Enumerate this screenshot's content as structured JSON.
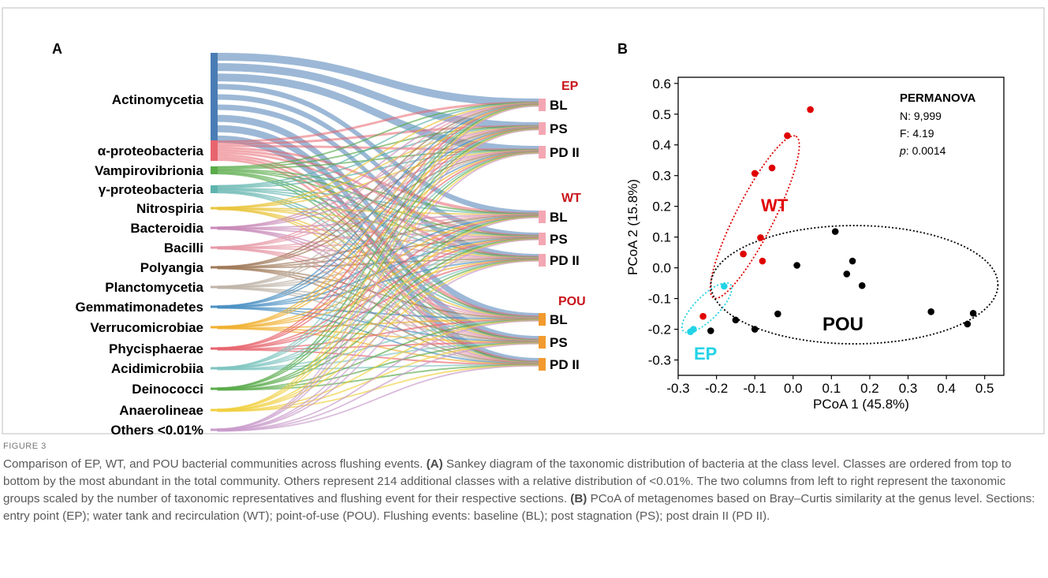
{
  "panels": {
    "a": "A",
    "b": "B"
  },
  "sankey": {
    "type": "sankey",
    "source_classes": [
      "Actinomycetia",
      "α-proteobacteria",
      "Vampirovibrionia",
      "γ-proteobacteria",
      "Nitrospiria",
      "Bacteroidia",
      "Bacilli",
      "Polyangia",
      "Planctomycetia",
      "Gemmatimonadetes",
      "Verrucomicrobiae",
      "Phycisphaerae",
      "Acidimicrobiia",
      "Deinococci",
      "Anaerolineae",
      "Others <0.01%"
    ],
    "source_colors": [
      "#4a7db5",
      "#e8646e",
      "#5aab4a",
      "#5eb3ad",
      "#e9c53c",
      "#c88ab8",
      "#e89aa8",
      "#a07a5a",
      "#c0b4a8",
      "#4a90c2",
      "#f0b030",
      "#e8646e",
      "#7ec4c0",
      "#5aab4a",
      "#f0d040",
      "#c89acb"
    ],
    "source_relative_size": [
      1.0,
      0.22,
      0.09,
      0.08,
      0.015,
      0.01,
      0.01,
      0.01,
      0.01,
      0.01,
      0.01,
      0.01,
      0.01,
      0.01,
      0.01,
      0.01
    ],
    "groups": [
      {
        "name": "EP",
        "events": [
          "BL",
          "PS",
          "PD II"
        ],
        "color": "#f4a7b3"
      },
      {
        "name": "WT",
        "events": [
          "BL",
          "PS",
          "PD II"
        ],
        "color": "#f4a7b3"
      },
      {
        "name": "POU",
        "events": [
          "BL",
          "PS",
          "PD II"
        ],
        "color": "#f29a2e"
      }
    ]
  },
  "chart_data": {
    "type": "scatter",
    "xlabel": "PCoA 1 (45.8%)",
    "ylabel": "PCoA 2 (15.8%)",
    "xlim": [
      -0.3,
      0.55
    ],
    "ylim": [
      -0.35,
      0.62
    ],
    "xticks": [
      -0.3,
      -0.2,
      -0.1,
      0.0,
      0.1,
      0.2,
      0.3,
      0.4,
      0.5
    ],
    "yticks": [
      -0.3,
      -0.2,
      -0.1,
      0.0,
      0.1,
      0.2,
      0.3,
      0.4,
      0.5,
      0.6
    ],
    "series": [
      {
        "name": "WT",
        "color": "#e00000",
        "points": [
          [
            0.045,
            0.515
          ],
          [
            -0.015,
            0.43
          ],
          [
            -0.055,
            0.325
          ],
          [
            -0.1,
            0.307
          ],
          [
            -0.085,
            0.098
          ],
          [
            -0.13,
            0.045
          ],
          [
            -0.08,
            0.022
          ],
          [
            -0.235,
            -0.158
          ]
        ]
      },
      {
        "name": "POU",
        "color": "#000000",
        "points": [
          [
            0.11,
            0.118
          ],
          [
            0.155,
            0.022
          ],
          [
            0.01,
            0.008
          ],
          [
            0.14,
            -0.02
          ],
          [
            0.18,
            -0.058
          ],
          [
            -0.15,
            -0.17
          ],
          [
            -0.04,
            -0.15
          ],
          [
            -0.1,
            -0.2
          ],
          [
            -0.215,
            -0.205
          ],
          [
            0.36,
            -0.143
          ],
          [
            0.47,
            -0.148
          ],
          [
            0.455,
            -0.183
          ]
        ]
      },
      {
        "name": "EP",
        "color": "#22d3e6",
        "points": [
          [
            -0.18,
            -0.06
          ],
          [
            -0.26,
            -0.2
          ],
          [
            -0.268,
            -0.208
          ]
        ]
      }
    ],
    "ellipses": [
      {
        "group": "WT",
        "center": [
          -0.1,
          0.165
        ],
        "color": "#e00000"
      },
      {
        "group": "POU",
        "center": [
          0.16,
          -0.055
        ],
        "color": "#000000"
      },
      {
        "group": "EP",
        "center": [
          -0.225,
          -0.13
        ],
        "color": "#22d3e6"
      }
    ],
    "permanova": {
      "title": "PERMANOVA",
      "n": "N: 9,999",
      "f": "F: 4.19",
      "p_label": "p",
      "p_value": ": 0.0014"
    }
  },
  "caption": {
    "label": "FIGURE 3",
    "p1": "Comparison of EP, WT, and POU bacterial communities across flushing events. ",
    "a_tag": "(A)",
    "p2": " Sankey diagram of the taxonomic distribution of bacteria at the class level. Classes are ordered from top to bottom by the most abundant in the total community. Others represent 214 additional classes with a relative distribution of <0.01%. The two columns from left to right represent the taxonomic groups scaled by the number of taxonomic representatives and flushing event for their respective sections. ",
    "b_tag": "(B)",
    "p3": " PCoA of metagenomes based on Bray–Curtis similarity at the genus level. Sections: entry point (EP); water tank and recirculation (WT); point-of-use (POU). Flushing events: baseline (BL); post stagnation (PS); post drain II (PD II)."
  }
}
